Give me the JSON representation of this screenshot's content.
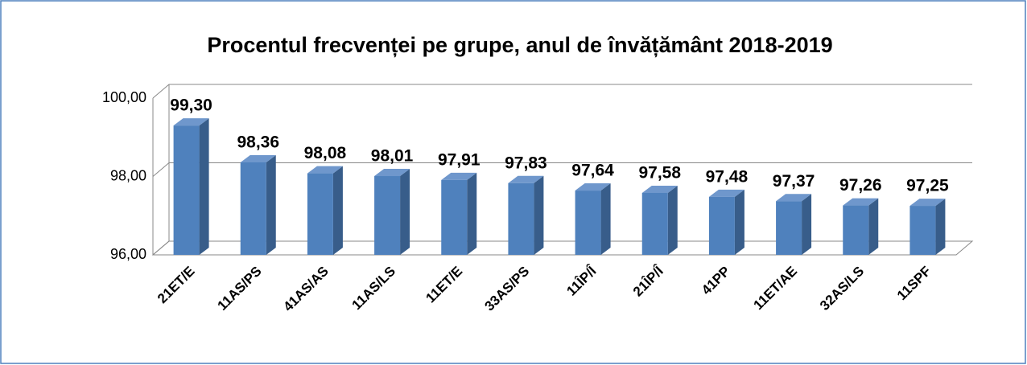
{
  "chart_data": {
    "type": "bar3d",
    "title": "Procentul frecvenței pe grupe, anul de învățământ 2018-2019",
    "categories": [
      "21ET/E",
      "11AS/PS",
      "41AS/AS",
      "11AS/LS",
      "11ET/E",
      "33AS/PS",
      "11ÎP/Î",
      "21ÎP/Î",
      "41PP",
      "11ET/AE",
      "32AS/LS",
      "11SPF"
    ],
    "values": [
      99.3,
      98.36,
      98.08,
      98.01,
      97.91,
      97.83,
      97.64,
      97.58,
      97.48,
      97.37,
      97.26,
      97.25
    ],
    "value_labels": [
      "99,30",
      "98,36",
      "98,08",
      "98,01",
      "97,91",
      "97,83",
      "97,64",
      "97,58",
      "97,48",
      "97,37",
      "97,26",
      "97,25"
    ],
    "color": "#4f81bd",
    "ylim": [
      96,
      100
    ],
    "yticks": [
      {
        "value": 96,
        "label": "96,00"
      },
      {
        "value": 98,
        "label": "98,00"
      },
      {
        "value": 100,
        "label": "100,00"
      }
    ],
    "grid": true
  }
}
